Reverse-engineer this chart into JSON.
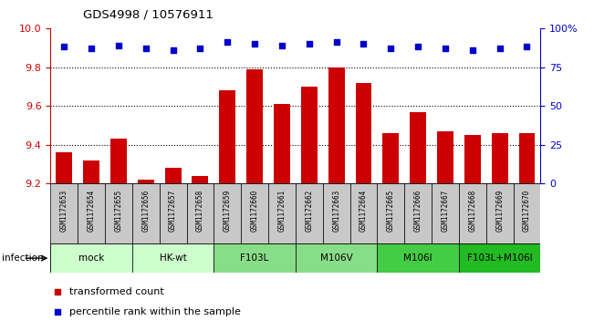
{
  "title": "GDS4998 / 10576911",
  "samples": [
    "GSM1172653",
    "GSM1172654",
    "GSM1172655",
    "GSM1172656",
    "GSM1172657",
    "GSM1172658",
    "GSM1172659",
    "GSM1172660",
    "GSM1172661",
    "GSM1172662",
    "GSM1172663",
    "GSM1172664",
    "GSM1172665",
    "GSM1172666",
    "GSM1172667",
    "GSM1172668",
    "GSM1172669",
    "GSM1172670"
  ],
  "bar_values": [
    9.36,
    9.32,
    9.43,
    9.22,
    9.28,
    9.24,
    9.68,
    9.79,
    9.61,
    9.7,
    9.8,
    9.72,
    9.46,
    9.57,
    9.47,
    9.45,
    9.46,
    9.46
  ],
  "dot_values": [
    88,
    87,
    89,
    87,
    86,
    87,
    91,
    90,
    89,
    90,
    91,
    90,
    87,
    88,
    87,
    86,
    87,
    88
  ],
  "ylim_left": [
    9.2,
    10.0
  ],
  "ylim_right": [
    0,
    100
  ],
  "yticks_left": [
    9.2,
    9.4,
    9.6,
    9.8,
    10.0
  ],
  "yticks_right": [
    0,
    25,
    50,
    75,
    100
  ],
  "bar_color": "#cc0000",
  "dot_color": "#0000cc",
  "groups": [
    {
      "label": "mock",
      "start": 0,
      "end": 2,
      "color": "#ccffcc"
    },
    {
      "label": "HK-wt",
      "start": 3,
      "end": 5,
      "color": "#ccffcc"
    },
    {
      "label": "F103L",
      "start": 6,
      "end": 8,
      "color": "#88dd88"
    },
    {
      "label": "M106V",
      "start": 9,
      "end": 11,
      "color": "#88dd88"
    },
    {
      "label": "M106I",
      "start": 12,
      "end": 14,
      "color": "#44cc44"
    },
    {
      "label": "F103L+M106I",
      "start": 15,
      "end": 17,
      "color": "#22bb22"
    }
  ],
  "infection_label": "infection",
  "legend_bar_label": "transformed count",
  "legend_dot_label": "percentile rank within the sample",
  "tick_color_left": "#cc0000",
  "tick_color_right": "#0000cc",
  "sample_box_color": "#c8c8c8",
  "grid_linestyle": "dotted"
}
